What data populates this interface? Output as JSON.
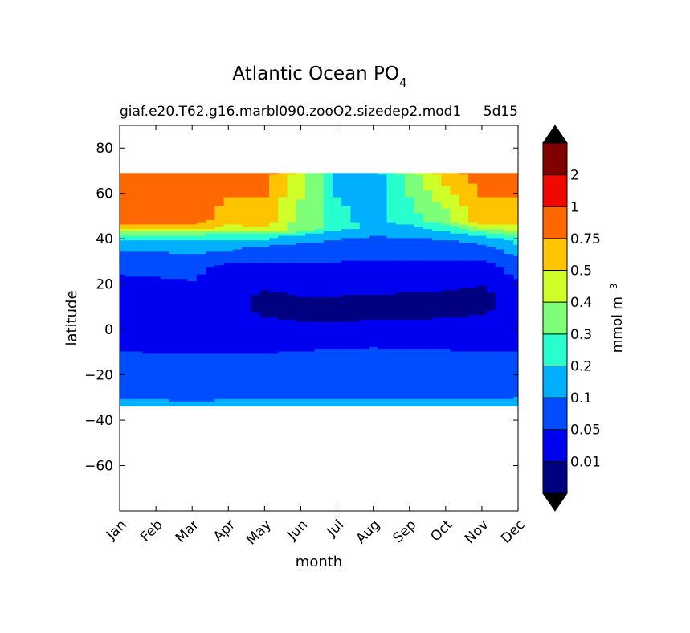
{
  "chart_data": {
    "type": "contour",
    "title_main": "Atlantic Ocean PO",
    "title_sub": "4",
    "subtitle_left": "giaf.e20.T62.g16.marbl090.zooO2.sizedep2.mod1",
    "subtitle_right": "5d15",
    "xlabel": "month",
    "ylabel": "latitude",
    "x_categories": [
      "Jan",
      "Feb",
      "Mar",
      "Apr",
      "May",
      "Jun",
      "Jul",
      "Aug",
      "Sep",
      "Oct",
      "Nov",
      "Dec"
    ],
    "ylim": [
      -80,
      90
    ],
    "y_ticks": [
      80,
      60,
      40,
      20,
      0,
      -20,
      -40,
      -60
    ],
    "y_tick_labels": [
      "80",
      "60",
      "40",
      "20",
      "0",
      "−20",
      "−40",
      "−60"
    ],
    "data_lat_range": [
      -34,
      69
    ],
    "colorbar": {
      "label": "mmol m",
      "label_exp": "−3",
      "levels": [
        0.01,
        0.05,
        0.1,
        0.2,
        0.3,
        0.4,
        0.5,
        0.75,
        1,
        2
      ],
      "tick_labels": [
        "0.01",
        "0.05",
        "0.1",
        "0.2",
        "0.3",
        "0.4",
        "0.5",
        "0.75",
        "1",
        "2"
      ],
      "colors": [
        "#000080",
        "#0000f1",
        "#004dff",
        "#00b0ff",
        "#29ffce",
        "#7dff7a",
        "#ceff29",
        "#ffc400",
        "#ff6800",
        "#f10800",
        "#800000"
      ],
      "under_color": "#000000",
      "over_color": "#000000"
    },
    "bands": [
      {
        "level": 3,
        "lats": [
          -34,
          -26.5,
          -19.5,
          0.5,
          17.5,
          31,
          38.5,
          42.5,
          45,
          48.5,
          69
        ],
        "vals": [
          3,
          2,
          2,
          1,
          1,
          2,
          3,
          5,
          7,
          8,
          8
        ]
      },
      {
        "level": 3,
        "lats": [
          -34,
          -27.5,
          -21,
          0.5,
          16.5,
          30,
          38.5,
          42.5,
          45,
          48.5,
          69
        ],
        "vals": [
          3,
          2,
          2,
          1,
          1,
          2,
          3,
          5,
          7,
          8,
          8
        ]
      },
      {
        "level": 3,
        "lats": [
          -34,
          -28.5,
          -21.5,
          0.5,
          15,
          29,
          38,
          42.5,
          45,
          48.5,
          69
        ],
        "vals": [
          3,
          2,
          2,
          1,
          1,
          2,
          3,
          5,
          7,
          8,
          8
        ]
      },
      {
        "level": 3,
        "lats": [
          -34,
          -27.5,
          -21.5,
          0.5,
          13,
          27,
          37,
          42,
          44.5,
          48,
          69
        ],
        "vals": [
          3,
          2,
          2,
          1,
          1,
          1,
          3,
          4,
          6,
          7,
          8
        ]
      },
      {
        "level": 3,
        "lats": [
          -34,
          -26.5,
          -21,
          0.5,
          11,
          24,
          35.5,
          41.5,
          44,
          47.5,
          69
        ],
        "vals": [
          3,
          2,
          2,
          1,
          0,
          1,
          2,
          4,
          6,
          7,
          8
        ]
      },
      {
        "level": 3,
        "lats": [
          -34,
          -26.5,
          -19.5,
          0.5,
          7,
          23,
          35.5,
          41,
          44,
          47,
          69
        ],
        "vals": [
          3,
          2,
          2,
          1,
          0,
          1,
          2,
          3,
          5,
          5,
          6
        ]
      },
      {
        "level": 3,
        "lats": [
          -34,
          -27,
          -17.5,
          0.5,
          7,
          23,
          37,
          42.5,
          45,
          47,
          69
        ],
        "vals": [
          3,
          2,
          2,
          1,
          0,
          1,
          2,
          3,
          4,
          4,
          3
        ]
      },
      {
        "level": 3,
        "lats": [
          -34,
          -27,
          -16.5,
          0.5,
          8,
          23,
          38.5,
          44,
          45.5,
          47.5,
          69
        ],
        "vals": [
          3,
          2,
          2,
          1,
          0,
          1,
          2,
          3,
          3,
          3,
          3
        ]
      },
      {
        "level": 3,
        "lats": [
          -34,
          -27.5,
          -17.5,
          0.5,
          9,
          23.5,
          38.5,
          43,
          45.5,
          47.5,
          69
        ],
        "vals": [
          3,
          2,
          2,
          1,
          0,
          1,
          2,
          3,
          3,
          4,
          5
        ]
      },
      {
        "level": 3,
        "lats": [
          -34,
          -27,
          -18.5,
          0.5,
          10,
          24.5,
          37,
          42,
          45,
          48,
          69
        ],
        "vals": [
          3,
          2,
          2,
          1,
          0,
          1,
          2,
          3,
          4,
          5,
          7
        ]
      },
      {
        "level": 3,
        "lats": [
          -34,
          -26.5,
          -19.5,
          0.5,
          13,
          26,
          35.5,
          40.5,
          44,
          48,
          69
        ],
        "vals": [
          3,
          2,
          2,
          1,
          0,
          1,
          2,
          3,
          5,
          7,
          8
        ]
      },
      {
        "level": 3,
        "lats": [
          -34,
          -26,
          -19.5,
          0.5,
          16,
          29,
          35.5,
          40.5,
          44.5,
          48.5,
          69
        ],
        "vals": [
          3,
          2,
          2,
          1,
          1,
          2,
          3,
          4,
          6,
          7,
          8
        ]
      }
    ]
  }
}
